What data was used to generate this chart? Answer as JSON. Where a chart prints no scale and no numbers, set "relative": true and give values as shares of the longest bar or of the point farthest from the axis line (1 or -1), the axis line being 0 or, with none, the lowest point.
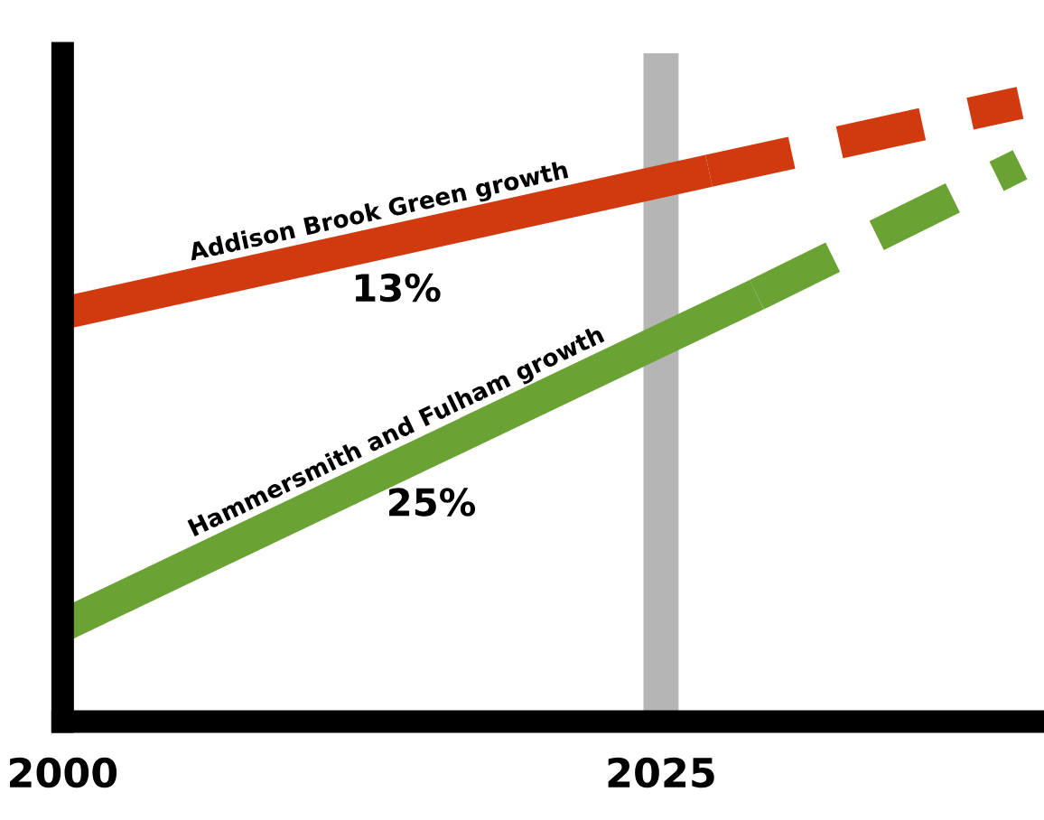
{
  "chart_data": {
    "type": "line",
    "relative": true,
    "xlim": [
      2000,
      2041
    ],
    "xticks": [
      2000,
      2025
    ],
    "series": [
      {
        "name": "Addison Brook Green growth",
        "color": "#d13a0e",
        "x": [
          2000,
          2027
        ],
        "values": [
          0.66,
          0.89
        ],
        "line_style": "solid"
      },
      {
        "color": "#d13a0e",
        "x": [
          2027,
          2040
        ],
        "values": [
          0.89,
          1.0
        ],
        "line_style": "dashed"
      },
      {
        "name": "Hammersmith and Fulham growth",
        "color": "#6aa334",
        "x": [
          2000,
          2029
        ],
        "values": [
          0.155,
          0.69
        ],
        "line_style": "solid"
      },
      {
        "color": "#6aa334",
        "x": [
          2029,
          2040
        ],
        "values": [
          0.69,
          0.9
        ],
        "line_style": "dashed"
      }
    ],
    "ref_lines": [
      {
        "axis": "x",
        "value": 2025,
        "color": "#b5b5b5"
      }
    ],
    "annotations": [
      "13%",
      "25%"
    ]
  }
}
